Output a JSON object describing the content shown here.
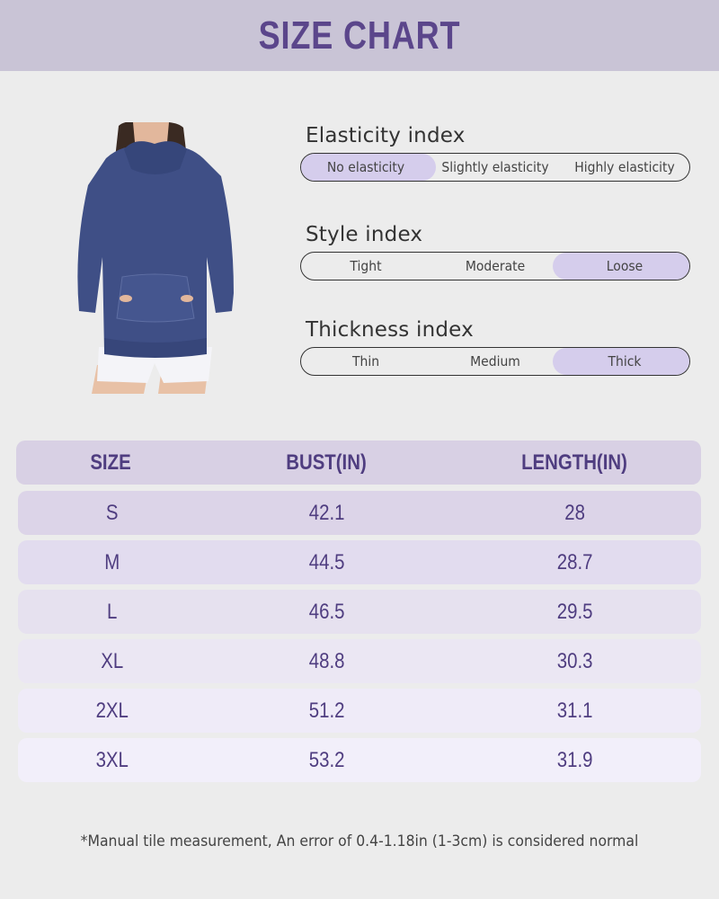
{
  "header": {
    "title": "SIZE CHART"
  },
  "product": {
    "image_alt": "Navy oversized hoodie worn with white shorts"
  },
  "indices": [
    {
      "title": "Elasticity index",
      "options": [
        "No elasticity",
        "Slightly elasticity",
        "Highly elasticity"
      ],
      "selected": 0
    },
    {
      "title": "Style index",
      "options": [
        "Tight",
        "Moderate",
        "Loose"
      ],
      "selected": 2
    },
    {
      "title": "Thickness index",
      "options": [
        "Thin",
        "Medium",
        "Thick"
      ],
      "selected": 2
    }
  ],
  "table": {
    "headers": [
      "SIZE",
      "BUST(IN)",
      "LENGTH(IN)"
    ],
    "rows": [
      [
        "S",
        "42.1",
        "28"
      ],
      [
        "M",
        "44.5",
        "28.7"
      ],
      [
        "L",
        "46.5",
        "29.5"
      ],
      [
        "XL",
        "48.8",
        "30.3"
      ],
      [
        "2XL",
        "51.2",
        "31.1"
      ],
      [
        "3XL",
        "53.2",
        "31.9"
      ]
    ],
    "row_colors": [
      "#dcd4e8",
      "#e2dcef",
      "#e6e1ef",
      "#ebe7f3",
      "#efebf8",
      "#f2effa"
    ]
  },
  "footnote": "*Manual tile measurement, An error of 0.4-1.18in (1-3cm) is considered normal",
  "colors": {
    "header_bg": "#c9c4d6",
    "accent": "#5b468b",
    "highlight": "#d5cdec",
    "page_bg": "#ececec"
  }
}
